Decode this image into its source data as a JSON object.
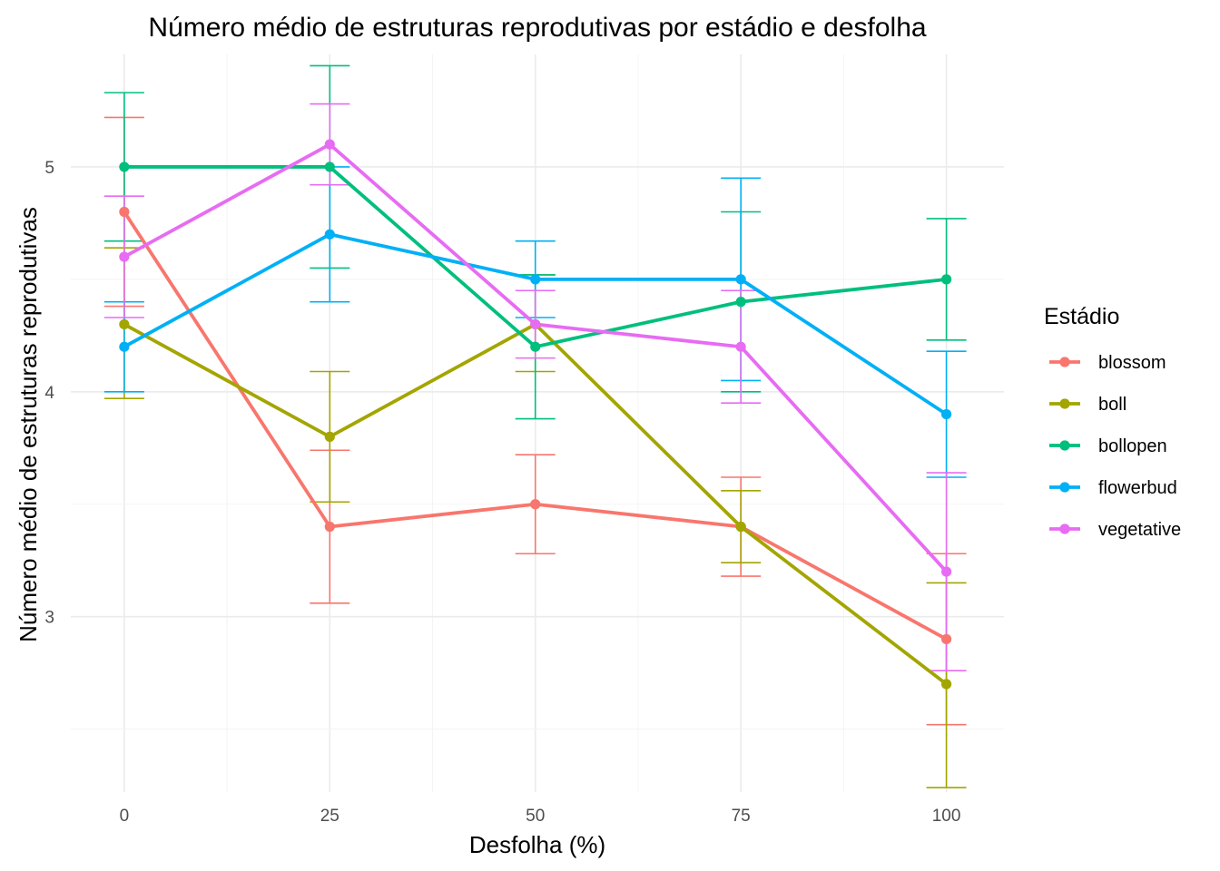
{
  "chart_data": {
    "type": "line",
    "title": "Número médio de estruturas reprodutivas por estádio e desfolha",
    "xlabel": "Desfolha (%)",
    "ylabel": "Número médio de estruturas reprodutivas",
    "x": [
      0,
      25,
      50,
      75,
      100
    ],
    "x_tick_labels": [
      "0",
      "25",
      "50",
      "75",
      "100"
    ],
    "y_ticks": [
      3,
      4,
      5
    ],
    "y_tick_labels": [
      "3",
      "4",
      "5"
    ],
    "xlim": [
      -6.5,
      107
    ],
    "ylim": [
      2.22,
      5.5
    ],
    "grid": true,
    "legend": {
      "title": "Estádio",
      "position": "right"
    },
    "series": [
      {
        "name": "blossom",
        "color": "#F8766D",
        "values": [
          4.8,
          3.4,
          3.5,
          3.4,
          2.9
        ],
        "lower": [
          4.38,
          3.06,
          3.28,
          3.18,
          2.52
        ],
        "upper": [
          5.22,
          3.74,
          3.72,
          3.62,
          3.28
        ]
      },
      {
        "name": "boll",
        "color": "#A3A500",
        "values": [
          4.3,
          3.8,
          4.3,
          3.4,
          2.7
        ],
        "lower": [
          3.97,
          3.51,
          4.09,
          3.24,
          2.24
        ],
        "upper": [
          4.64,
          4.09,
          4.52,
          3.56,
          3.15
        ]
      },
      {
        "name": "bollopen",
        "color": "#00BF7D",
        "values": [
          5.0,
          5.0,
          4.2,
          4.4,
          4.5
        ],
        "lower": [
          4.67,
          4.55,
          3.88,
          4.0,
          4.23
        ],
        "upper": [
          5.33,
          5.45,
          4.52,
          4.8,
          4.77
        ]
      },
      {
        "name": "flowerbud",
        "color": "#00B0F6",
        "values": [
          4.2,
          4.7,
          4.5,
          4.5,
          3.9
        ],
        "lower": [
          4.0,
          4.4,
          4.33,
          4.05,
          3.62
        ],
        "upper": [
          4.4,
          5.0,
          4.67,
          4.95,
          4.18
        ]
      },
      {
        "name": "vegetative",
        "color": "#E76BF3",
        "values": [
          4.6,
          5.1,
          4.3,
          4.2,
          3.2
        ],
        "lower": [
          4.33,
          4.92,
          4.15,
          3.95,
          2.76
        ],
        "upper": [
          4.87,
          5.28,
          4.45,
          4.45,
          3.64
        ]
      }
    ]
  }
}
